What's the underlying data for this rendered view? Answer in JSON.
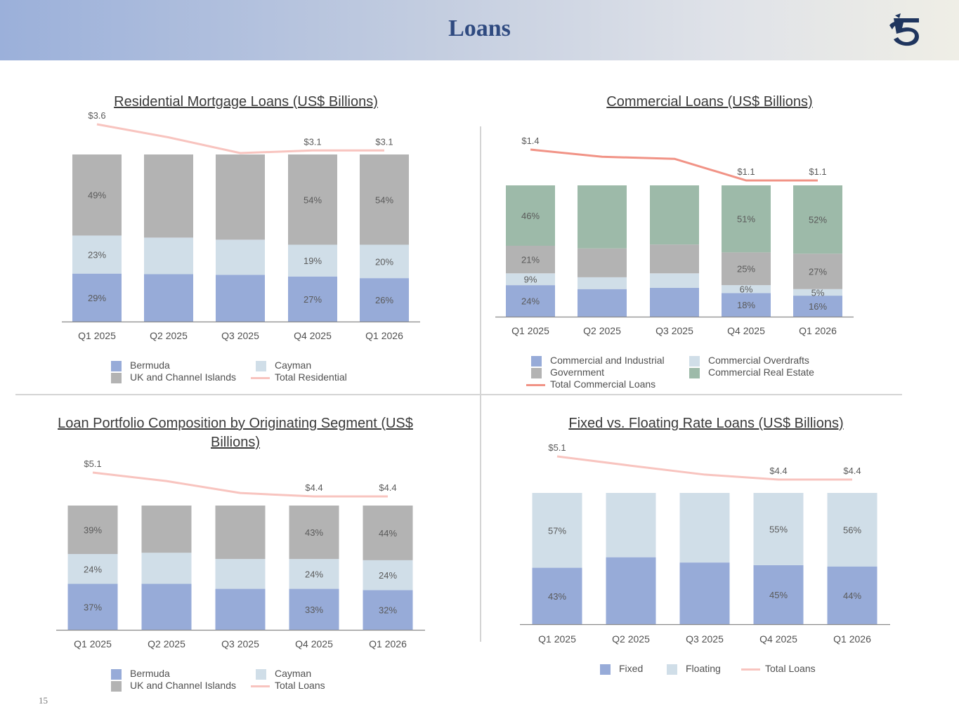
{
  "header": {
    "title": "Loans"
  },
  "page_number": "15",
  "colors": {
    "bermuda": "#97abd8",
    "cayman": "#d0dee8",
    "uk": "#b3b3b3",
    "cre": "#9dbaa9",
    "fixed": "#97abd8",
    "floating": "#d0dee8",
    "residential_line": "#f8c4bf",
    "commercial_line": "#f19386",
    "loans_line": "#f8c4bf"
  },
  "chart_data": [
    {
      "id": "residential",
      "type": "bar",
      "stacked": true,
      "title": "Residential Mortgage Loans (US$ Billions)",
      "categories": [
        "Q1 2025",
        "Q2 2025",
        "Q3 2025",
        "Q4 2025",
        "Q1 2026"
      ],
      "series": [
        {
          "name": "Bermuda",
          "color": "#97abd8",
          "values": [
            29,
            28.5,
            28,
            27,
            26
          ],
          "labels": [
            "29%",
            "",
            "",
            "27%",
            "26%"
          ]
        },
        {
          "name": "Cayman",
          "color": "#d0dee8",
          "values": [
            23,
            22,
            21,
            19,
            20
          ],
          "labels": [
            "23%",
            "",
            "",
            "19%",
            "20%"
          ]
        },
        {
          "name": "UK and Channel Islands",
          "color": "#b3b3b3",
          "values": [
            49,
            50,
            51,
            54,
            54
          ],
          "labels": [
            "49%",
            "",
            "",
            "54%",
            "54%"
          ]
        }
      ],
      "line": {
        "name": "Total Residential",
        "color": "#f8c4bf",
        "values": [
          3.6,
          3.35,
          3.05,
          3.1,
          3.1
        ],
        "labels": [
          "$3.6",
          "",
          "",
          "$3.1",
          "$3.1"
        ]
      },
      "legend": [
        {
          "name": "Bermuda",
          "kind": "box",
          "color": "#97abd8"
        },
        {
          "name": "Cayman",
          "kind": "box",
          "color": "#d0dee8"
        },
        {
          "name": "UK and Channel Islands",
          "kind": "box",
          "color": "#b3b3b3"
        },
        {
          "name": "Total Residential",
          "kind": "line",
          "color": "#f8c4bf"
        }
      ]
    },
    {
      "id": "commercial",
      "type": "bar",
      "stacked": true,
      "title": "Commercial Loans (US$ Billions)",
      "categories": [
        "Q1 2025",
        "Q2 2025",
        "Q3 2025",
        "Q4 2025",
        "Q1 2026"
      ],
      "series": [
        {
          "name": "Commercial and Industrial",
          "color": "#97abd8",
          "values": [
            24,
            21,
            22,
            18,
            16
          ],
          "labels": [
            "24%",
            "",
            "",
            "18%",
            "16%"
          ]
        },
        {
          "name": "Commercial Overdrafts",
          "color": "#d0dee8",
          "values": [
            9,
            9,
            11,
            6,
            5
          ],
          "labels": [
            "9%",
            "",
            "",
            "6%",
            "5%"
          ]
        },
        {
          "name": "Government",
          "color": "#b3b3b3",
          "values": [
            21,
            22,
            22,
            25,
            27
          ],
          "labels": [
            "21%",
            "",
            "",
            "25%",
            "27%"
          ]
        },
        {
          "name": "Commercial Real Estate",
          "color": "#9dbaa9",
          "values": [
            46,
            48,
            45,
            51,
            52
          ],
          "labels": [
            "46%",
            "",
            "",
            "51%",
            "52%"
          ]
        }
      ],
      "line": {
        "name": "Total Commercial Loans",
        "color": "#f19386",
        "values": [
          1.4,
          1.33,
          1.31,
          1.1,
          1.1
        ],
        "labels": [
          "$1.4",
          "",
          "",
          "$1.1",
          "$1.1"
        ]
      },
      "legend": [
        {
          "name": "Commercial and Industrial",
          "kind": "box",
          "color": "#97abd8"
        },
        {
          "name": "Commercial Overdrafts",
          "kind": "box",
          "color": "#d0dee8"
        },
        {
          "name": "Government",
          "kind": "box",
          "color": "#b3b3b3"
        },
        {
          "name": "Commercial Real Estate",
          "kind": "box",
          "color": "#9dbaa9"
        },
        {
          "name": "Total Commercial Loans",
          "kind": "line",
          "color": "#f19386"
        }
      ]
    },
    {
      "id": "composition",
      "type": "bar",
      "stacked": true,
      "title": "Loan Portfolio Composition by Originating Segment (US$ Billions)",
      "categories": [
        "Q1 2025",
        "Q2 2025",
        "Q3 2025",
        "Q4 2025",
        "Q1 2026"
      ],
      "series": [
        {
          "name": "Bermuda",
          "color": "#97abd8",
          "values": [
            37,
            37,
            33,
            33,
            32
          ],
          "labels": [
            "37%",
            "",
            "",
            "33%",
            "32%"
          ]
        },
        {
          "name": "Cayman",
          "color": "#d0dee8",
          "values": [
            24,
            25,
            24,
            24,
            24
          ],
          "labels": [
            "24%",
            "",
            "",
            "24%",
            "24%"
          ]
        },
        {
          "name": "UK and Channel Islands",
          "color": "#b3b3b3",
          "values": [
            39,
            38,
            43,
            43,
            44
          ],
          "labels": [
            "39%",
            "",
            "",
            "43%",
            "44%"
          ]
        }
      ],
      "line": {
        "name": "Total Loans",
        "color": "#f8c4bf",
        "values": [
          5.1,
          4.85,
          4.5,
          4.4,
          4.4
        ],
        "labels": [
          "$5.1",
          "",
          "",
          "$4.4",
          "$4.4"
        ]
      },
      "legend": [
        {
          "name": "Bermuda",
          "kind": "box",
          "color": "#97abd8"
        },
        {
          "name": "Cayman",
          "kind": "box",
          "color": "#d0dee8"
        },
        {
          "name": "UK and Channel Islands",
          "kind": "box",
          "color": "#b3b3b3"
        },
        {
          "name": "Total Loans",
          "kind": "line",
          "color": "#f8c4bf"
        }
      ]
    },
    {
      "id": "fixed-floating",
      "type": "bar",
      "stacked": true,
      "title": "Fixed vs. Floating Rate Loans (US$ Billions)",
      "categories": [
        "Q1 2025",
        "Q2 2025",
        "Q3 2025",
        "Q4 2025",
        "Q1 2026"
      ],
      "series": [
        {
          "name": "Fixed",
          "color": "#97abd8",
          "values": [
            43,
            51,
            47,
            45,
            44
          ],
          "labels": [
            "43%",
            "",
            "",
            "45%",
            "44%"
          ]
        },
        {
          "name": "Floating",
          "color": "#d0dee8",
          "values": [
            57,
            49,
            53,
            55,
            56
          ],
          "labels": [
            "57%",
            "",
            "",
            "55%",
            "56%"
          ]
        }
      ],
      "line": {
        "name": "Total Loans",
        "color": "#f8c4bf",
        "values": [
          5.1,
          4.82,
          4.55,
          4.4,
          4.4
        ],
        "labels": [
          "$5.1",
          "",
          "",
          "$4.4",
          "$4.4"
        ]
      },
      "legend": [
        {
          "name": "Fixed",
          "kind": "box",
          "color": "#97abd8"
        },
        {
          "name": "Floating",
          "kind": "box",
          "color": "#d0dee8"
        },
        {
          "name": "Total Loans",
          "kind": "line",
          "color": "#f8c4bf"
        }
      ]
    }
  ]
}
